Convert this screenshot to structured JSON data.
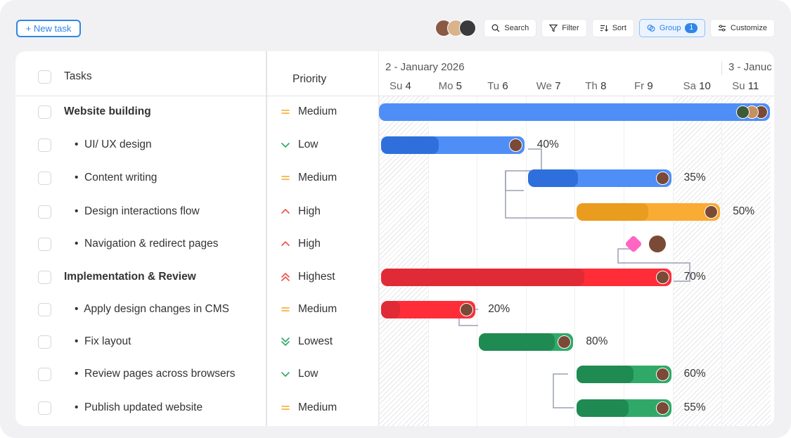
{
  "toolbar": {
    "new_task": "+ New task",
    "search": "Search",
    "filter": "Filter",
    "sort": "Sort",
    "group": "Group",
    "group_count": "1",
    "customize": "Customize"
  },
  "header": {
    "tasks": "Tasks",
    "priority": "Priority",
    "months": [
      "2 - January 2026",
      "3 - Januc"
    ],
    "days": [
      {
        "dow": "Su",
        "d": "4",
        "weekend": true
      },
      {
        "dow": "Mo",
        "d": "5"
      },
      {
        "dow": "Tu",
        "d": "6"
      },
      {
        "dow": "We",
        "d": "7"
      },
      {
        "dow": "Th",
        "d": "8"
      },
      {
        "dow": "Fr",
        "d": "9"
      },
      {
        "dow": "Sa",
        "d": "10",
        "weekend": true
      },
      {
        "dow": "Su",
        "d": "11",
        "weekend": true
      }
    ]
  },
  "colors": {
    "blue": "#4f8ef7",
    "blue_dark": "#2f6fdc",
    "orange": "#f9ab33",
    "orange_dark": "#ea9c1e",
    "red": "#ff2d38",
    "red_dark": "#e02b36",
    "green": "#30a968",
    "green_dark": "#1f8a52",
    "milestone": "#ff66c4",
    "accent": "#2f86e8"
  },
  "tasks": [
    {
      "name": "Website building",
      "group": true,
      "priority": "Medium",
      "start": 4,
      "end": 12,
      "color": "blue",
      "avatars": 3
    },
    {
      "name": "UI/ UX design",
      "priority": "Low",
      "start": 4,
      "end": 7,
      "progress": 40,
      "label": "40%",
      "color": "blue"
    },
    {
      "name": "Content writing",
      "priority": "Medium",
      "start": 7,
      "end": 10,
      "progress": 35,
      "label": "35%",
      "color": "blue"
    },
    {
      "name": "Design interactions flow",
      "priority": "High",
      "start": 8,
      "end": 11,
      "progress": 50,
      "label": "50%",
      "color": "orange"
    },
    {
      "name": "Navigation & redirect pages",
      "priority": "High",
      "milestone": 9
    },
    {
      "name": "Implementation & Review",
      "group": true,
      "priority": "Highest",
      "start": 4,
      "end": 10,
      "progress": 70,
      "label": "70%",
      "color": "red"
    },
    {
      "name": "Apply design changes in CMS",
      "priority": "Medium",
      "start": 4,
      "end": 6,
      "progress": 20,
      "label": "20%",
      "color": "red"
    },
    {
      "name": "Fix layout",
      "priority": "Lowest",
      "start": 6,
      "end": 8,
      "progress": 80,
      "label": "80%",
      "color": "green"
    },
    {
      "name": "Review pages across browsers",
      "priority": "Low",
      "start": 8,
      "end": 10,
      "progress": 60,
      "label": "60%",
      "color": "green"
    },
    {
      "name": "Publish updated website",
      "priority": "Medium",
      "start": 8,
      "end": 10,
      "progress": 55,
      "label": "55%",
      "color": "green"
    }
  ],
  "priority_icons": {
    "Medium": {
      "icon": "equals-icon",
      "glyph": "=",
      "color": "#f5a623"
    },
    "Low": {
      "icon": "chevron-down-icon",
      "glyph": "⌄",
      "color": "#2ea866"
    },
    "High": {
      "icon": "chevron-up-icon",
      "glyph": "^",
      "color": "#f0504a"
    },
    "Highest": {
      "icon": "double-chevron-up-icon",
      "glyph": "︽",
      "color": "#f0504a"
    },
    "Lowest": {
      "icon": "double-chevron-down-icon",
      "glyph": "︾",
      "color": "#2ea866"
    }
  }
}
